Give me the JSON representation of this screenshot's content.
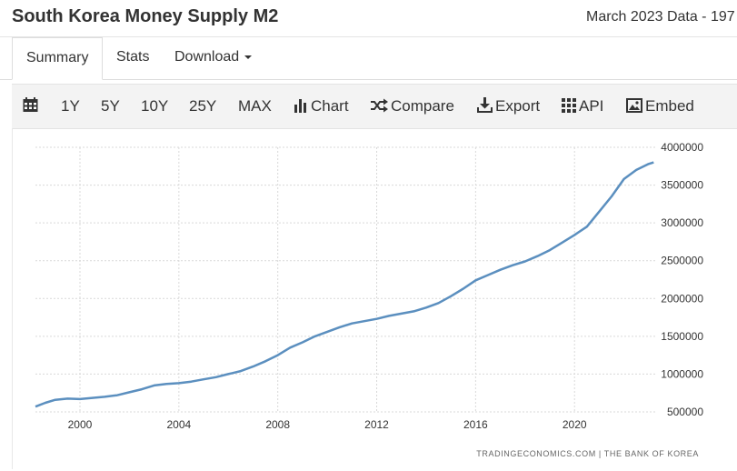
{
  "page": {
    "title": "South Korea Money Supply M2",
    "meta": "March 2023 Data - 197"
  },
  "tabs": [
    {
      "label": "Summary",
      "active": true
    },
    {
      "label": "Stats",
      "active": false
    },
    {
      "label": "Download",
      "active": false
    }
  ],
  "toolbar": {
    "ranges": [
      "1Y",
      "5Y",
      "10Y",
      "25Y",
      "MAX"
    ],
    "chart_label": "Chart",
    "compare_label": "Compare",
    "export_label": "Export",
    "api_label": "API",
    "embed_label": "Embed"
  },
  "colors": {
    "line": "#5b8fbf",
    "grid": "#d9d9d9",
    "text": "#333333"
  },
  "chart_data": {
    "type": "line",
    "title": "",
    "xlabel": "",
    "ylabel": "",
    "source": "TRADINGECONOMICS.COM | THE BANK OF KOREA",
    "xlim": [
      1998.2,
      2023.3
    ],
    "ylim": [
      500000,
      4000000
    ],
    "x_ticks": [
      2000,
      2004,
      2008,
      2012,
      2016,
      2020
    ],
    "x_tick_labels": [
      "2000",
      "2004",
      "2008",
      "2012",
      "2016",
      "2020"
    ],
    "y_ticks": [
      500000,
      1000000,
      1500000,
      2000000,
      2500000,
      3000000,
      3500000,
      4000000
    ],
    "y_tick_labels": [
      "500000",
      "1000000",
      "1500000",
      "2000000",
      "2500000",
      "3000000",
      "3500000",
      "4000000"
    ],
    "grid": true,
    "series": [
      {
        "name": "Money Supply M2",
        "x": [
          1998.2,
          1998.6,
          1999.0,
          1999.5,
          2000.0,
          2000.5,
          2001.0,
          2001.5,
          2002.0,
          2002.5,
          2003.0,
          2003.5,
          2004.0,
          2004.5,
          2005.0,
          2005.5,
          2006.0,
          2006.5,
          2007.0,
          2007.5,
          2008.0,
          2008.5,
          2009.0,
          2009.5,
          2010.0,
          2010.5,
          2011.0,
          2011.5,
          2012.0,
          2012.5,
          2013.0,
          2013.5,
          2014.0,
          2014.5,
          2015.0,
          2015.5,
          2016.0,
          2016.5,
          2017.0,
          2017.5,
          2018.0,
          2018.5,
          2019.0,
          2019.5,
          2020.0,
          2020.5,
          2021.0,
          2021.5,
          2022.0,
          2022.5,
          2023.0,
          2023.2
        ],
        "values": [
          570000,
          620000,
          660000,
          675000,
          670000,
          685000,
          700000,
          720000,
          760000,
          800000,
          850000,
          870000,
          880000,
          900000,
          930000,
          960000,
          1000000,
          1040000,
          1100000,
          1170000,
          1250000,
          1350000,
          1420000,
          1500000,
          1560000,
          1620000,
          1670000,
          1700000,
          1730000,
          1770000,
          1800000,
          1830000,
          1880000,
          1940000,
          2030000,
          2130000,
          2240000,
          2310000,
          2380000,
          2440000,
          2490000,
          2560000,
          2640000,
          2740000,
          2840000,
          2950000,
          3150000,
          3350000,
          3580000,
          3700000,
          3780000,
          3800000
        ]
      }
    ]
  }
}
